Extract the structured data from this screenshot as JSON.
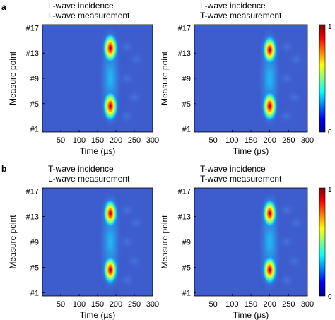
{
  "panel_labels": [
    "a",
    "b"
  ],
  "colorbar": {
    "max_label": "1",
    "min_label": "0",
    "colormap": "jet",
    "range": [
      0,
      1
    ]
  },
  "chart_data": [
    {
      "type": "heatmap",
      "panel": "a",
      "title": [
        "L-wave incidence",
        "L-wave measurement"
      ],
      "xlabel": "Time (µs)",
      "ylabel": "Measure point",
      "xlim": [
        0,
        300
      ],
      "xticks": [
        50,
        100,
        150,
        200,
        250,
        300
      ],
      "yticks": [
        "#1",
        "#5",
        "#9",
        "#13",
        "#17"
      ],
      "ytick_values": [
        1,
        5,
        9,
        13,
        17
      ],
      "hotspots": [
        {
          "time": 185,
          "point": 13.8,
          "intensity": 1.0
        },
        {
          "time": 185,
          "point": 4.6,
          "intensity": 1.0
        }
      ]
    },
    {
      "type": "heatmap",
      "panel": "a",
      "title": [
        "L-wave incidence",
        "T-wave measurement"
      ],
      "xlabel": "Time (µs)",
      "ylabel": "Measure point",
      "xlim": [
        0,
        300
      ],
      "xticks": [
        50,
        100,
        150,
        200,
        250,
        300
      ],
      "yticks": [
        "#1",
        "#5",
        "#9",
        "#13",
        "#17"
      ],
      "ytick_values": [
        1,
        5,
        9,
        13,
        17
      ],
      "hotspots": [
        {
          "time": 200,
          "point": 13.5,
          "intensity": 0.95
        },
        {
          "time": 200,
          "point": 4.6,
          "intensity": 1.0
        }
      ]
    },
    {
      "type": "heatmap",
      "panel": "b",
      "title": [
        "T-wave incidence",
        "L-wave measurement"
      ],
      "xlabel": "Time (µs)",
      "ylabel": "Measure point",
      "xlim": [
        0,
        300
      ],
      "xticks": [
        50,
        100,
        150,
        200,
        250,
        300
      ],
      "yticks": [
        "#1",
        "#5",
        "#9",
        "#13",
        "#17"
      ],
      "ytick_values": [
        1,
        5,
        9,
        13,
        17
      ],
      "hotspots": [
        {
          "time": 185,
          "point": 13.5,
          "intensity": 0.95
        },
        {
          "time": 185,
          "point": 4.6,
          "intensity": 0.95
        }
      ]
    },
    {
      "type": "heatmap",
      "panel": "b",
      "title": [
        "T-wave incidence",
        "T-wave measurement"
      ],
      "xlabel": "Time (µs)",
      "ylabel": "Measure point",
      "xlim": [
        0,
        300
      ],
      "xticks": [
        50,
        100,
        150,
        200,
        250,
        300
      ],
      "yticks": [
        "#1",
        "#5",
        "#9",
        "#13",
        "#17"
      ],
      "ytick_values": [
        1,
        5,
        9,
        13,
        17
      ],
      "hotspots": [
        {
          "time": 200,
          "point": 13.5,
          "intensity": 0.95
        },
        {
          "time": 200,
          "point": 4.6,
          "intensity": 0.95
        }
      ]
    }
  ]
}
